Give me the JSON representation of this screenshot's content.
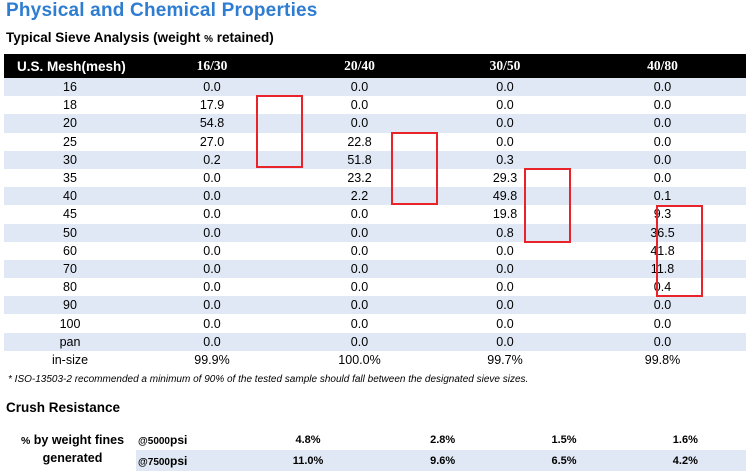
{
  "title": "Physical and Chemical Properties",
  "sieve": {
    "heading_main": "Typical Sieve Analysis (weight ",
    "heading_pct": "%",
    "heading_end": " retained)",
    "columns": [
      "U.S. Mesh(mesh)",
      "16/30",
      "20/40",
      "30/50",
      "40/80"
    ],
    "rows": [
      [
        "16",
        "0.0",
        "0.0",
        "0.0",
        "0.0"
      ],
      [
        "18",
        "17.9",
        "0.0",
        "0.0",
        "0.0"
      ],
      [
        "20",
        "54.8",
        "0.0",
        "0.0",
        "0.0"
      ],
      [
        "25",
        "27.0",
        "22.8",
        "0.0",
        "0.0"
      ],
      [
        "30",
        "0.2",
        "51.8",
        "0.3",
        "0.0"
      ],
      [
        "35",
        "0.0",
        "23.2",
        "29.3",
        "0.0"
      ],
      [
        "40",
        "0.0",
        "2.2",
        "49.8",
        "0.1"
      ],
      [
        "45",
        "0.0",
        "0.0",
        "19.8",
        "9.3"
      ],
      [
        "50",
        "0.0",
        "0.0",
        "0.8",
        "36.5"
      ],
      [
        "60",
        "0.0",
        "0.0",
        "0.0",
        "41.8"
      ],
      [
        "70",
        "0.0",
        "0.0",
        "0.0",
        "11.8"
      ],
      [
        "80",
        "0.0",
        "0.0",
        "0.0",
        "0.4"
      ],
      [
        "90",
        "0.0",
        "0.0",
        "0.0",
        "0.0"
      ],
      [
        "100",
        "0.0",
        "0.0",
        "0.0",
        "0.0"
      ],
      [
        "pan",
        "0.0",
        "0.0",
        "0.0",
        "0.0"
      ],
      [
        "in-size",
        "99.9%",
        "100.0%",
        "99.7%",
        "99.8%"
      ]
    ],
    "highlight_color": "#e8242a",
    "note": "* ISO-13503-2 recommended a minimum of 90% of the tested sample should fall between the designated sieve sizes."
  },
  "crush": {
    "heading": "Crush Resistance",
    "label_pct": "%",
    "label_line1": " by weight fines",
    "label_line2": "generated",
    "rows": [
      {
        "label_at": "@5000",
        "label_unit": "psi",
        "values": [
          "4.8%",
          "2.8%",
          "1.5%",
          "1.6%"
        ]
      },
      {
        "label_at": "@7500",
        "label_unit": "psi",
        "values": [
          "11.0%",
          "9.6%",
          "6.5%",
          "4.2%"
        ]
      }
    ]
  },
  "colors": {
    "title": "#2e7dd1",
    "header_bg": "#000000",
    "band": "#dfe8f4"
  }
}
